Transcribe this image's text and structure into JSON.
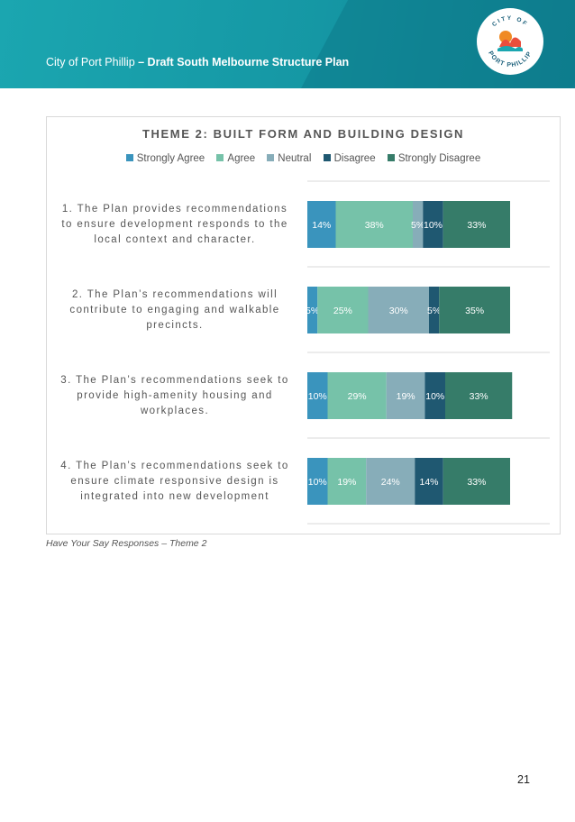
{
  "header": {
    "title_plain": "City of Port Phillip ",
    "title_bold": "– Draft South Melbourne Structure Plan",
    "logo_text_top": "CITY OF",
    "logo_text_bottom": "PORT PHILLIP"
  },
  "caption": "Have Your Say Responses – Theme 2",
  "page_number": "21",
  "chart_data": {
    "type": "bar",
    "orientation": "horizontal",
    "stacked": true,
    "title": "THEME 2: BUILT FORM AND BUILDING DESIGN",
    "legend_position": "top",
    "grid": "horizontal-lines",
    "xlim": [
      0,
      100
    ],
    "categories": [
      [
        "1. The Plan provides recommendations",
        "to ensure development responds to the",
        "local context and character."
      ],
      [
        "2. The Plan’s recommendations will",
        "contribute to engaging and walkable",
        "precincts."
      ],
      [
        "3. The Plan’s recommendations seek to",
        "provide high-amenity housing and",
        "workplaces."
      ],
      [
        "4. The Plan’s recommendations seek to",
        "ensure climate responsive design is",
        "integrated into new development"
      ]
    ],
    "series": [
      {
        "name": "Strongly Agree",
        "color": "#3a94bd",
        "values": [
          14,
          5,
          10,
          10
        ],
        "labels": [
          "14%",
          "5%",
          "10%",
          "10%"
        ]
      },
      {
        "name": "Agree",
        "color": "#76c2a9",
        "values": [
          38,
          25,
          29,
          19
        ],
        "labels": [
          "38%",
          "25%",
          "29%",
          "19%"
        ]
      },
      {
        "name": "Neutral",
        "color": "#87adb9",
        "values": [
          5,
          30,
          19,
          24
        ],
        "labels": [
          "5%",
          "30%",
          "19%",
          "24%"
        ]
      },
      {
        "name": "Disagree",
        "color": "#1f5871",
        "values": [
          10,
          5,
          10,
          14
        ],
        "labels": [
          "10%",
          "5%",
          "10%",
          "14%"
        ]
      },
      {
        "name": "Strongly Disagree",
        "color": "#367c69",
        "values": [
          33,
          35,
          33,
          33
        ],
        "labels": [
          "33%",
          "35%",
          "33%",
          "33%"
        ]
      }
    ]
  }
}
